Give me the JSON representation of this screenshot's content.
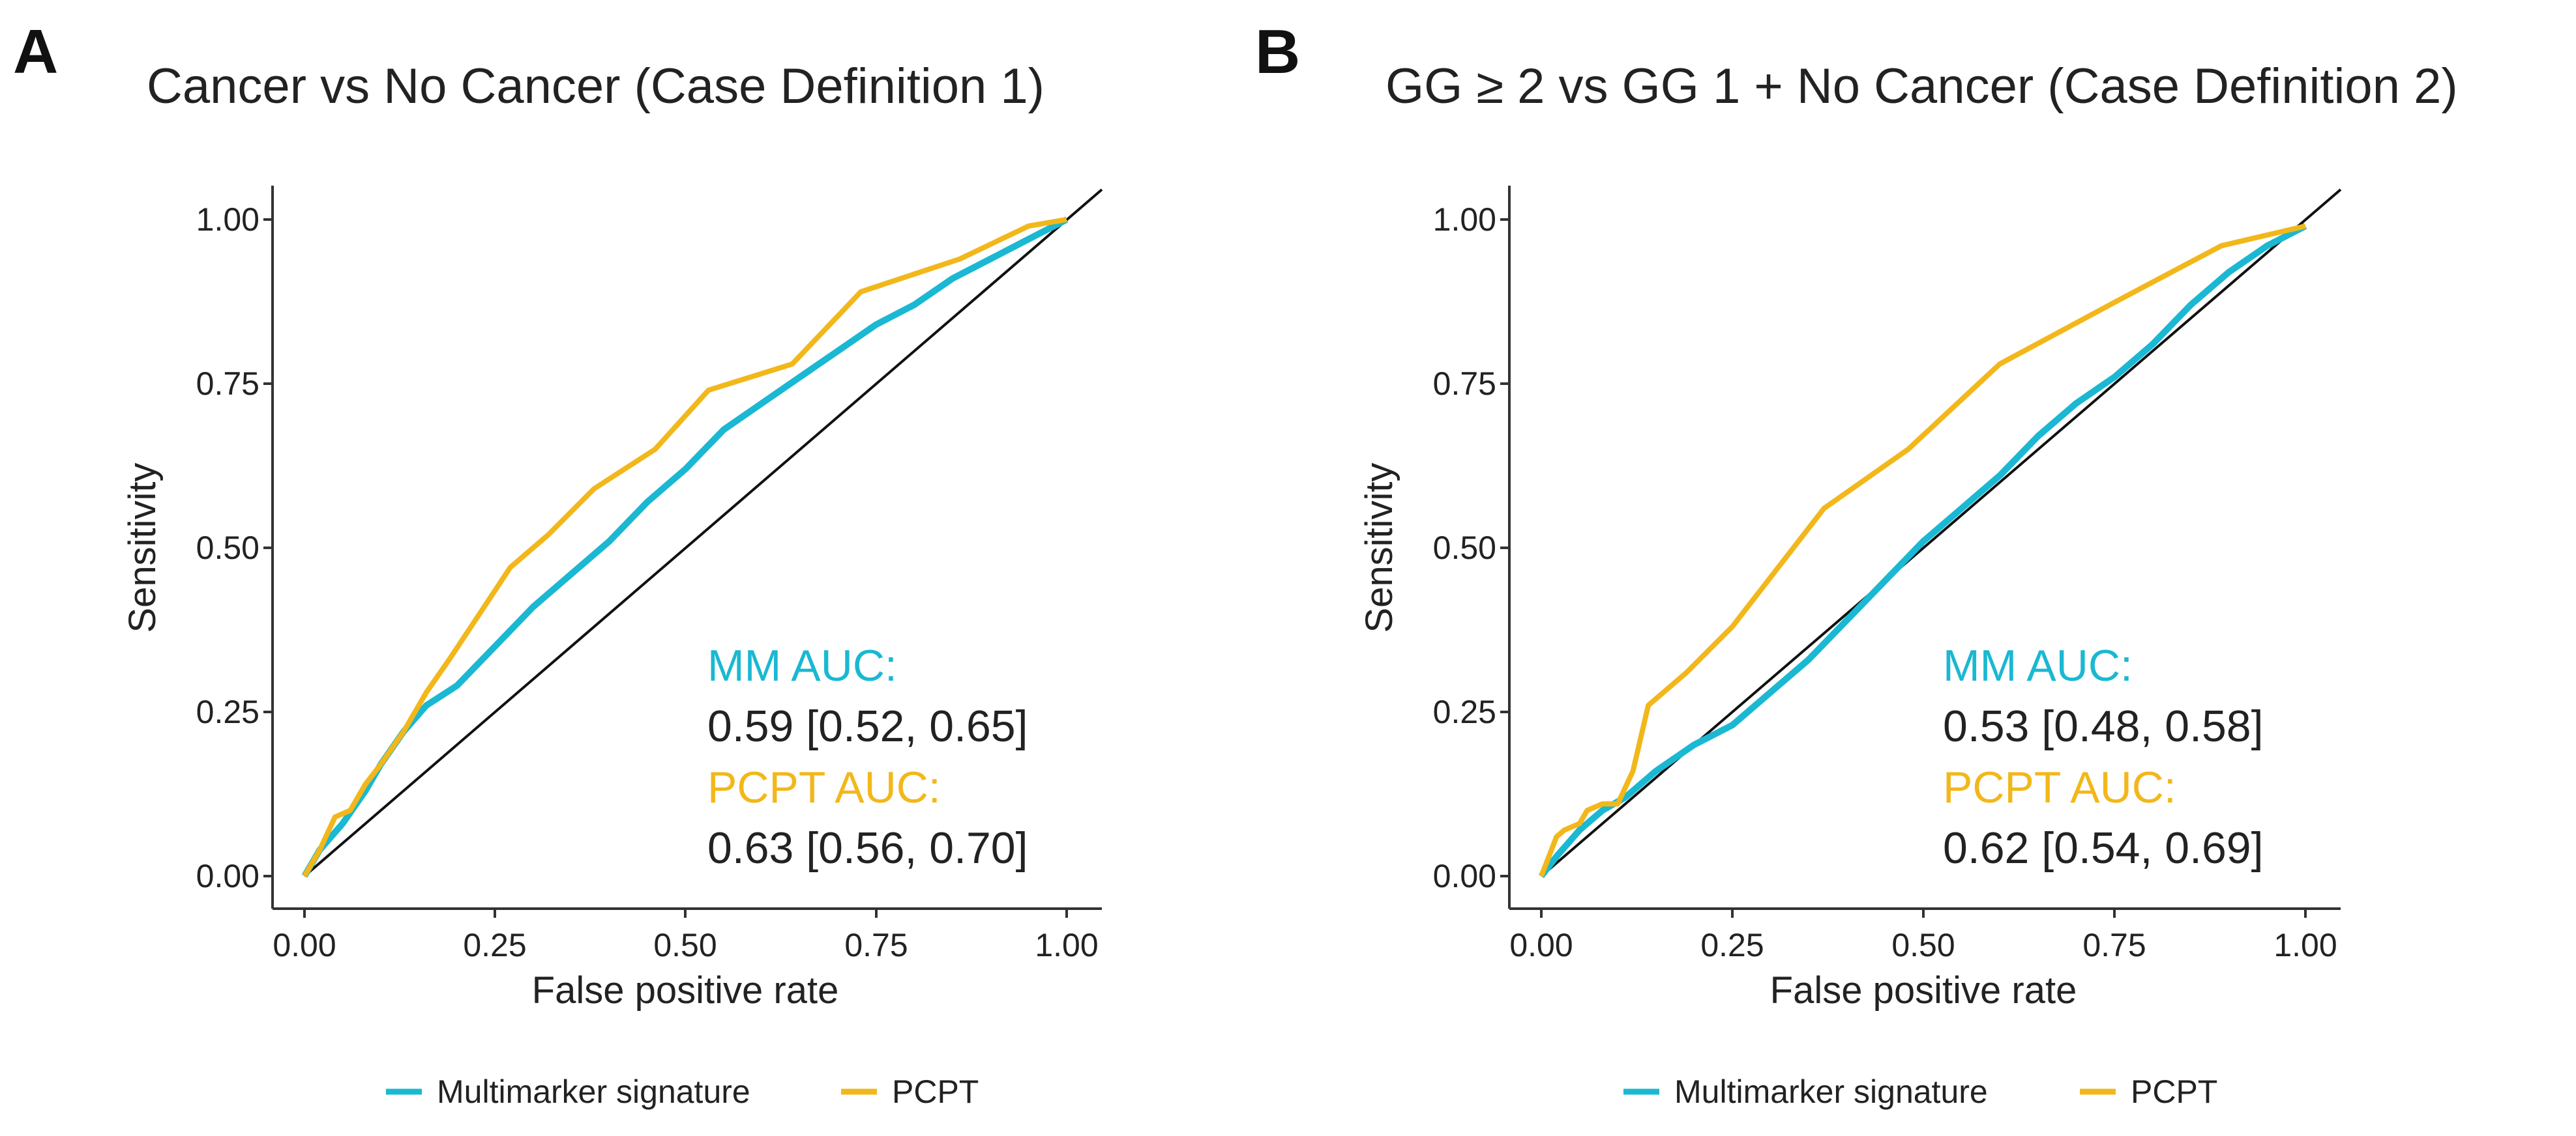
{
  "colors": {
    "mm": "#1ab8d2",
    "pcpt": "#f2b71a",
    "reference": "#111111",
    "axis": "#333333"
  },
  "chart_data": [
    {
      "type": "line",
      "panel": "A",
      "title": "Cancer vs No Cancer (Case Definition 1)",
      "xlabel": "False positive rate",
      "ylabel": "Sensitivity",
      "xlim": [
        0,
        1
      ],
      "ylim": [
        0,
        1
      ],
      "xticks": [
        "0.00",
        "0.25",
        "0.50",
        "0.75",
        "1.00"
      ],
      "yticks": [
        "0.00",
        "0.25",
        "0.50",
        "0.75",
        "1.00"
      ],
      "legend_position": "bottom",
      "series": [
        {
          "name": "Multimarker signature",
          "color_key": "mm",
          "x": [
            0,
            0.02,
            0.05,
            0.08,
            0.1,
            0.13,
            0.16,
            0.2,
            0.25,
            0.3,
            0.35,
            0.4,
            0.45,
            0.5,
            0.55,
            0.6,
            0.65,
            0.7,
            0.75,
            0.8,
            0.85,
            0.9,
            0.95,
            1.0
          ],
          "y": [
            0,
            0.04,
            0.08,
            0.13,
            0.17,
            0.22,
            0.26,
            0.29,
            0.35,
            0.41,
            0.46,
            0.51,
            0.57,
            0.62,
            0.68,
            0.72,
            0.76,
            0.8,
            0.84,
            0.87,
            0.91,
            0.94,
            0.97,
            1.0
          ]
        },
        {
          "name": "PCPT",
          "color_key": "pcpt",
          "x": [
            0,
            0.02,
            0.04,
            0.06,
            0.08,
            0.1,
            0.13,
            0.16,
            0.19,
            0.23,
            0.27,
            0.32,
            0.38,
            0.46,
            0.53,
            0.64,
            0.73,
            0.86,
            0.95,
            1.0
          ],
          "y": [
            0,
            0.04,
            0.09,
            0.1,
            0.14,
            0.17,
            0.22,
            0.28,
            0.33,
            0.4,
            0.47,
            0.52,
            0.59,
            0.65,
            0.74,
            0.78,
            0.89,
            0.94,
            0.99,
            1.0
          ]
        }
      ],
      "annotations": [
        {
          "label": "MM AUC:",
          "value": "0.59 [0.52, 0.65]"
        },
        {
          "label": "PCPT AUC:",
          "value": "0.63 [0.56, 0.70]"
        }
      ]
    },
    {
      "type": "line",
      "panel": "B",
      "title": "GG ≥ 2 vs GG 1 + No Cancer (Case Definition 2)",
      "xlabel": "False positive rate",
      "ylabel": "Sensitivity",
      "xlim": [
        0,
        1
      ],
      "ylim": [
        0,
        1
      ],
      "xticks": [
        "0.00",
        "0.25",
        "0.50",
        "0.75",
        "1.00"
      ],
      "yticks": [
        "0.00",
        "0.25",
        "0.50",
        "0.75",
        "1.00"
      ],
      "legend_position": "bottom",
      "series": [
        {
          "name": "Multimarker signature",
          "color_key": "mm",
          "x": [
            0,
            0.02,
            0.05,
            0.08,
            0.11,
            0.15,
            0.2,
            0.25,
            0.3,
            0.35,
            0.4,
            0.45,
            0.5,
            0.55,
            0.6,
            0.65,
            0.7,
            0.75,
            0.8,
            0.85,
            0.9,
            0.95,
            1.0
          ],
          "y": [
            0,
            0.03,
            0.07,
            0.1,
            0.12,
            0.16,
            0.2,
            0.23,
            0.28,
            0.33,
            0.39,
            0.45,
            0.51,
            0.56,
            0.61,
            0.67,
            0.72,
            0.76,
            0.81,
            0.87,
            0.92,
            0.96,
            0.99
          ]
        },
        {
          "name": "PCPT",
          "color_key": "pcpt",
          "x": [
            0,
            0.02,
            0.03,
            0.05,
            0.06,
            0.08,
            0.1,
            0.12,
            0.14,
            0.19,
            0.25,
            0.37,
            0.48,
            0.6,
            0.76,
            0.89,
            1.0
          ],
          "y": [
            0,
            0.06,
            0.07,
            0.08,
            0.1,
            0.11,
            0.11,
            0.16,
            0.26,
            0.31,
            0.38,
            0.56,
            0.65,
            0.78,
            0.88,
            0.96,
            0.99
          ]
        }
      ],
      "annotations": [
        {
          "label": "MM AUC:",
          "value": "0.53 [0.48, 0.58]"
        },
        {
          "label": "PCPT AUC:",
          "value": "0.62 [0.54, 0.69]"
        }
      ]
    }
  ]
}
